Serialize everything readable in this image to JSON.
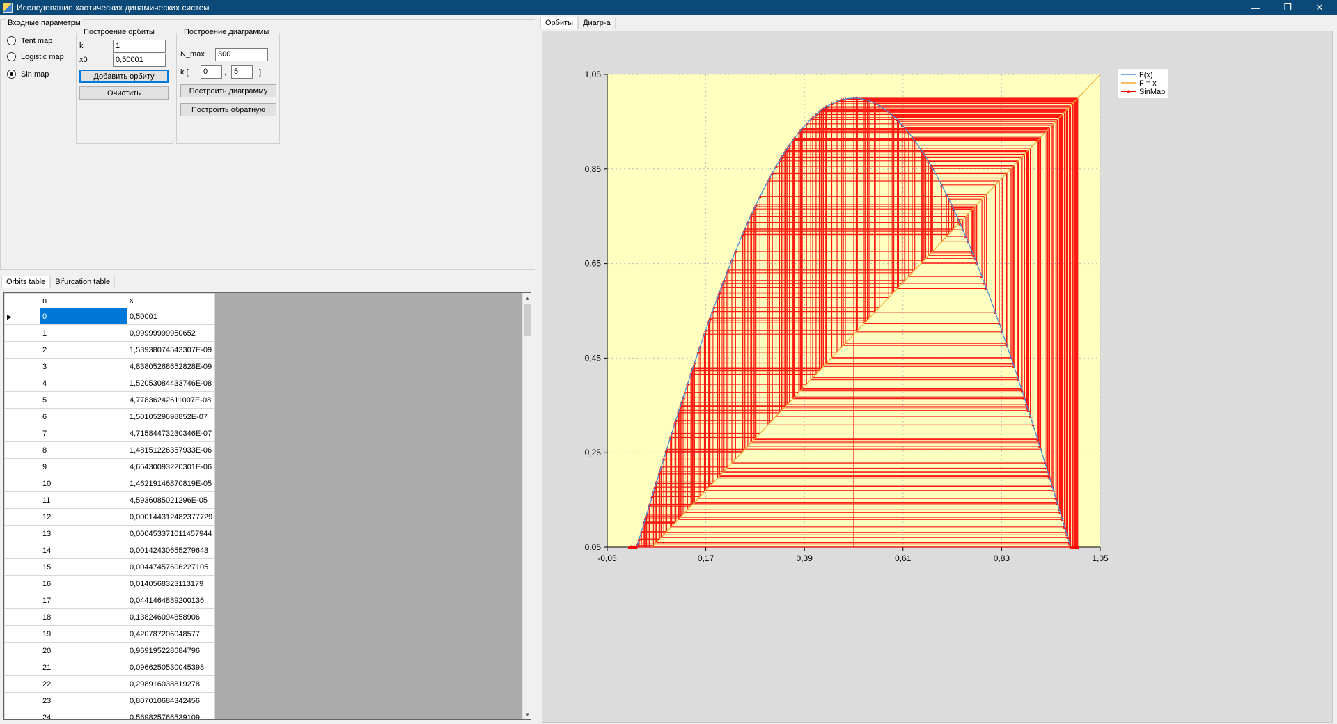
{
  "window": {
    "title": "Исследование хаотических динамических систем",
    "min_glyph": "—",
    "max_glyph": "❐",
    "close_glyph": "✕"
  },
  "input_panel": {
    "legend": "Входные параметры",
    "maps": [
      {
        "label": "Tent map",
        "checked": false
      },
      {
        "label": "Logistic map",
        "checked": false
      },
      {
        "label": "Sin map",
        "checked": true
      }
    ],
    "orbit_group": {
      "title": "Построение орбиты",
      "k_label": "k",
      "k_value": "1",
      "x0_label": "x0",
      "x0_value": "0,50001",
      "add_button": "Добавить орбиту",
      "clear_button": "Очистить"
    },
    "diagram_group": {
      "title": "Построение диаграммы",
      "nmax_label": "N_max",
      "nmax_value": "300",
      "k_open": "k [",
      "k_from": "0",
      "k_sep": ",",
      "k_to": "5",
      "k_close": "]",
      "build_button": "Построить диаграмму",
      "build_reverse_button": "Построить обратную"
    }
  },
  "left_tabs": [
    "Orbits table",
    "Bifurcation table"
  ],
  "right_tabs": [
    "Орбиты",
    "Диагр-а"
  ],
  "orbits_table": {
    "columns": [
      "n",
      "x"
    ],
    "row_marker": "▶",
    "rows": [
      [
        "0",
        "0,50001"
      ],
      [
        "1",
        "0,99999999950652"
      ],
      [
        "2",
        "1,53938074543307E-09"
      ],
      [
        "3",
        "4,83805268652828E-09"
      ],
      [
        "4",
        "1,52053084433746E-08"
      ],
      [
        "5",
        "4,77836242611007E-08"
      ],
      [
        "6",
        "1,5010529698852E-07"
      ],
      [
        "7",
        "4,71584473230346E-07"
      ],
      [
        "8",
        "1,48151226357933E-06"
      ],
      [
        "9",
        "4,65430093220301E-06"
      ],
      [
        "10",
        "1,46219146870819E-05"
      ],
      [
        "11",
        "4,5936085021296E-05"
      ],
      [
        "12",
        "0,000144312482377729"
      ],
      [
        "13",
        "0,000453371011457944"
      ],
      [
        "14",
        "0,00142430655279643"
      ],
      [
        "15",
        "0,00447457606227105"
      ],
      [
        "16",
        "0,0140568323113179"
      ],
      [
        "17",
        "0,0441464889200136"
      ],
      [
        "18",
        "0,138246094858906"
      ],
      [
        "19",
        "0,420787206048577"
      ],
      [
        "20",
        "0,969195228684796"
      ],
      [
        "21",
        "0,0966250530045398"
      ],
      [
        "22",
        "0,298916038819278"
      ],
      [
        "23",
        "0,807010684342456"
      ],
      [
        "24",
        "0,569825766539109"
      ]
    ]
  },
  "chart_data": {
    "type": "line",
    "xlim": [
      -0.05,
      1.05
    ],
    "ylim": [
      0.05,
      1.05
    ],
    "x_ticks": [
      "-0,05",
      "0,17",
      "0,39",
      "0,61",
      "0,83",
      "1,05"
    ],
    "y_ticks": [
      "0,05",
      "0,25",
      "0,45",
      "0,65",
      "0,85",
      "1,05"
    ],
    "legend_position": "top-right",
    "plot_background": "#ffffc0",
    "series": [
      {
        "name": "F(x)",
        "color": "#4f8fd6",
        "function": "sin(pi*x)"
      },
      {
        "name": "F = x",
        "color": "#f0a830",
        "function": "x"
      },
      {
        "name": "SinMap",
        "color": "#ff0000",
        "type": "cobweb",
        "iterate": "k*sin(pi*x)",
        "k": 1,
        "x0": 0.50001,
        "iterations": 300
      }
    ]
  }
}
